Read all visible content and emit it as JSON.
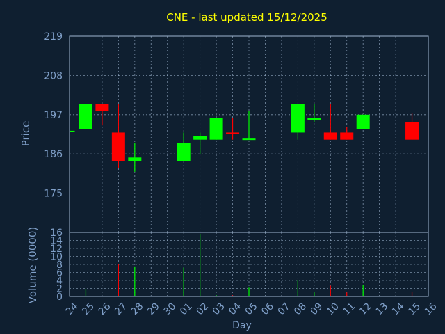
{
  "chart_data": {
    "type": "candlestick",
    "title": "CNE - last updated 15/12/2025",
    "xlabel": "Day",
    "price_ylabel": "Price",
    "volume_ylabel": "Volume (0000)",
    "categories": [
      "24",
      "25",
      "26",
      "27",
      "28",
      "29",
      "30",
      "01",
      "02",
      "03",
      "04",
      "05",
      "06",
      "07",
      "08",
      "09",
      "10",
      "11",
      "12",
      "13",
      "14",
      "15",
      "16"
    ],
    "price_ticks": [
      175,
      186,
      197,
      208,
      219
    ],
    "price_ylim": [
      164,
      219
    ],
    "volume_ticks": [
      0,
      2,
      4,
      6,
      8,
      10,
      12,
      14,
      16
    ],
    "volume_ylim": [
      0,
      16
    ],
    "candles": [
      {
        "day": "24",
        "open": 192.5,
        "high": 192.5,
        "low": 192.5,
        "close": 192.5
      },
      {
        "day": "25",
        "open": 193,
        "high": 200,
        "low": 193,
        "close": 200
      },
      {
        "day": "26",
        "open": 200,
        "high": 200,
        "low": 194,
        "close": 198
      },
      {
        "day": "27",
        "open": 192,
        "high": 200,
        "low": 182,
        "close": 184
      },
      {
        "day": "28",
        "open": 184,
        "high": 189,
        "low": 181,
        "close": 185
      },
      {
        "day": "01",
        "open": 184,
        "high": 192,
        "low": 184,
        "close": 189
      },
      {
        "day": "02",
        "open": 190,
        "high": 192,
        "low": 186,
        "close": 191
      },
      {
        "day": "03",
        "open": 190,
        "high": 196,
        "low": 190,
        "close": 196
      },
      {
        "day": "04",
        "open": 192,
        "high": 196,
        "low": 190,
        "close": 191.5
      },
      {
        "day": "05",
        "open": 190,
        "high": 198,
        "low": 190,
        "close": 190.3
      },
      {
        "day": "08",
        "open": 192,
        "high": 200,
        "low": 190,
        "close": 200
      },
      {
        "day": "09",
        "open": 195.5,
        "high": 200,
        "low": 195,
        "close": 196
      },
      {
        "day": "10",
        "open": 192,
        "high": 200,
        "low": 190,
        "close": 190
      },
      {
        "day": "11",
        "open": 192,
        "high": 193.5,
        "low": 190,
        "close": 190
      },
      {
        "day": "12",
        "open": 193,
        "high": 197,
        "low": 193,
        "close": 197
      },
      {
        "day": "15",
        "open": 195,
        "high": 197.5,
        "low": 190,
        "close": 190
      }
    ],
    "volumes": [
      {
        "day": "24",
        "value": 0,
        "direction": "up"
      },
      {
        "day": "25",
        "value": 1.8,
        "direction": "up"
      },
      {
        "day": "26",
        "value": 0,
        "direction": "down"
      },
      {
        "day": "27",
        "value": 8,
        "direction": "down"
      },
      {
        "day": "28",
        "value": 7.5,
        "direction": "up"
      },
      {
        "day": "01",
        "value": 7.2,
        "direction": "up"
      },
      {
        "day": "02",
        "value": 15.5,
        "direction": "up"
      },
      {
        "day": "03",
        "value": 0.3,
        "direction": "up"
      },
      {
        "day": "04",
        "value": 0.3,
        "direction": "down"
      },
      {
        "day": "05",
        "value": 2.2,
        "direction": "up"
      },
      {
        "day": "08",
        "value": 4,
        "direction": "up"
      },
      {
        "day": "09",
        "value": 1,
        "direction": "up"
      },
      {
        "day": "10",
        "value": 2.7,
        "direction": "down"
      },
      {
        "day": "11",
        "value": 1,
        "direction": "down"
      },
      {
        "day": "12",
        "value": 2.8,
        "direction": "up"
      },
      {
        "day": "15",
        "value": 1.2,
        "direction": "down"
      }
    ],
    "grid": true,
    "colors": {
      "background": "#0f1f30",
      "title": "#ffff00",
      "axis_text": "#7f9fc8",
      "frame": "#9fb6d0",
      "grid": "#9fb6d0",
      "up": "#00ff00",
      "down": "#ff0000"
    }
  }
}
